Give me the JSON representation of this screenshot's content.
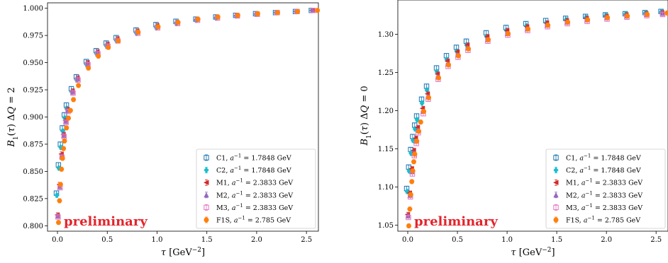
{
  "chart_data": [
    {
      "type": "scatter",
      "xlabel": "τ [GeV⁻²]",
      "ylabel": "B₁(τ) ΔQ = 2",
      "xlim": [
        -0.1,
        2.62
      ],
      "ylim": [
        0.795,
        1.005
      ],
      "xticks": [
        0.0,
        0.5,
        1.0,
        1.5,
        2.0,
        2.5
      ],
      "yticks": [
        0.8,
        0.825,
        0.85,
        0.875,
        0.9,
        0.925,
        0.95,
        0.975,
        1.0
      ],
      "xtick_labels": [
        "0.0",
        "0.5",
        "1.0",
        "1.5",
        "2.0",
        "2.5"
      ],
      "ytick_labels": [
        "0.800",
        "0.825",
        "0.850",
        "0.875",
        "0.900",
        "0.925",
        "0.950",
        "0.975",
        "1.000"
      ],
      "annotation": "preliminary",
      "legend_position": "lower-right",
      "series": [
        {
          "name": "C1, a⁻¹ = 1.7848 GeV",
          "color": "#1f77b4",
          "marker": "square",
          "x": [
            0.0,
            0.02,
            0.04,
            0.06,
            0.08,
            0.1,
            0.15,
            0.2,
            0.3,
            0.4,
            0.5,
            0.6,
            0.8,
            1.0,
            1.2,
            1.4,
            1.6,
            1.8,
            2.0,
            2.2,
            2.4,
            2.56
          ],
          "y": [
            0.83,
            0.856,
            0.875,
            0.89,
            0.902,
            0.911,
            0.926,
            0.937,
            0.951,
            0.961,
            0.968,
            0.973,
            0.98,
            0.985,
            0.988,
            0.99,
            0.992,
            0.9935,
            0.995,
            0.996,
            0.997,
            0.998
          ]
        },
        {
          "name": "C2, a⁻¹ = 1.7848 GeV",
          "color": "#17becf",
          "marker": "diamond",
          "x": [
            0.0,
            0.02,
            0.04,
            0.06,
            0.08,
            0.1,
            0.15,
            0.2,
            0.3,
            0.4,
            0.5,
            0.6,
            0.8,
            1.0,
            1.2,
            1.4,
            1.6,
            1.8,
            2.0,
            2.2,
            2.4,
            2.56
          ],
          "y": [
            0.828,
            0.853,
            0.872,
            0.887,
            0.899,
            0.908,
            0.923,
            0.934,
            0.948,
            0.958,
            0.965,
            0.97,
            0.977,
            0.982,
            0.986,
            0.989,
            0.991,
            0.993,
            0.9945,
            0.996,
            0.997,
            0.998
          ]
        },
        {
          "name": "M1, a⁻¹ = 2.3833 GeV",
          "color": "#d62728",
          "marker": "triangle-left",
          "x": [
            0.0,
            0.02,
            0.04,
            0.06,
            0.08,
            0.1,
            0.15,
            0.2,
            0.3,
            0.4,
            0.5,
            0.6,
            0.8,
            1.0,
            1.2,
            1.4,
            1.6,
            1.8,
            2.0,
            2.2,
            2.4,
            2.56
          ],
          "y": [
            0.81,
            0.838,
            0.866,
            0.884,
            0.897,
            0.907,
            0.924,
            0.936,
            0.95,
            0.96,
            0.967,
            0.972,
            0.979,
            0.984,
            0.987,
            0.99,
            0.992,
            0.9935,
            0.995,
            0.996,
            0.997,
            0.998
          ]
        },
        {
          "name": "M2, a⁻¹ = 2.3833 GeV",
          "color": "#9467bd",
          "marker": "triangle-up",
          "x": [
            0.0,
            0.02,
            0.04,
            0.06,
            0.08,
            0.1,
            0.15,
            0.2,
            0.3,
            0.4,
            0.5,
            0.6,
            0.8,
            1.0,
            1.2,
            1.4,
            1.6,
            1.8,
            2.0,
            2.2,
            2.4,
            2.56
          ],
          "y": [
            0.809,
            0.836,
            0.864,
            0.883,
            0.896,
            0.906,
            0.923,
            0.935,
            0.949,
            0.959,
            0.966,
            0.971,
            0.978,
            0.983,
            0.987,
            0.99,
            0.992,
            0.9935,
            0.995,
            0.996,
            0.997,
            0.998
          ]
        },
        {
          "name": "M3, a⁻¹ = 2.3833 GeV",
          "color": "#e377c2",
          "marker": "square-open",
          "x": [
            0.0,
            0.02,
            0.04,
            0.06,
            0.08,
            0.1,
            0.15,
            0.2,
            0.3,
            0.4,
            0.5,
            0.6,
            0.8,
            1.0,
            1.2,
            1.4,
            1.6,
            1.8,
            2.0,
            2.2,
            2.4,
            2.56
          ],
          "y": [
            0.808,
            0.835,
            0.863,
            0.882,
            0.895,
            0.905,
            0.922,
            0.934,
            0.948,
            0.958,
            0.965,
            0.97,
            0.977,
            0.982,
            0.986,
            0.989,
            0.991,
            0.993,
            0.9945,
            0.996,
            0.997,
            0.998
          ]
        },
        {
          "name": "F1S, a⁻¹ = 2.785 GeV",
          "color": "#ff7f0e",
          "marker": "circle",
          "x": [
            0.0,
            0.01,
            0.02,
            0.03,
            0.04,
            0.05,
            0.06,
            0.08,
            0.1,
            0.12,
            0.15,
            0.2,
            0.3,
            0.4,
            0.5,
            0.6,
            0.8,
            1.0,
            1.2,
            1.4,
            1.6,
            1.8,
            2.0,
            2.2,
            2.4,
            2.6
          ],
          "y": [
            0.803,
            0.823,
            0.838,
            0.852,
            0.862,
            0.871,
            0.878,
            0.89,
            0.899,
            0.906,
            0.916,
            0.929,
            0.945,
            0.956,
            0.964,
            0.97,
            0.978,
            0.983,
            0.987,
            0.99,
            0.992,
            0.9935,
            0.995,
            0.996,
            0.997,
            0.998
          ]
        }
      ]
    },
    {
      "type": "scatter",
      "xlabel": "τ [GeV⁻²]",
      "ylabel": "B₁(τ) ΔQ = 0",
      "xlim": [
        -0.1,
        2.62
      ],
      "ylim": [
        1.042,
        1.345
      ],
      "xticks": [
        0.0,
        0.5,
        1.0,
        1.5,
        2.0,
        2.5
      ],
      "yticks": [
        1.05,
        1.1,
        1.15,
        1.2,
        1.25,
        1.3
      ],
      "xtick_labels": [
        "0.0",
        "0.5",
        "1.0",
        "1.5",
        "2.0",
        "2.5"
      ],
      "ytick_labels": [
        "1.05",
        "1.10",
        "1.15",
        "1.20",
        "1.25",
        "1.30"
      ],
      "annotation": "preliminary",
      "legend_position": "lower-right",
      "series": [
        {
          "name": "C1, a⁻¹ = 1.7848 GeV",
          "color": "#1f77b4",
          "marker": "square",
          "x": [
            0.0,
            0.02,
            0.04,
            0.06,
            0.08,
            0.1,
            0.15,
            0.2,
            0.3,
            0.4,
            0.5,
            0.6,
            0.8,
            1.0,
            1.2,
            1.4,
            1.6,
            1.8,
            2.0,
            2.2,
            2.4,
            2.56
          ],
          "y": [
            1.098,
            1.126,
            1.149,
            1.166,
            1.181,
            1.193,
            1.215,
            1.232,
            1.256,
            1.272,
            1.283,
            1.291,
            1.302,
            1.309,
            1.314,
            1.318,
            1.321,
            1.3235,
            1.3255,
            1.327,
            1.3285,
            1.33
          ]
        },
        {
          "name": "C2, a⁻¹ = 1.7848 GeV",
          "color": "#17becf",
          "marker": "diamond",
          "x": [
            0.0,
            0.02,
            0.04,
            0.06,
            0.08,
            0.1,
            0.15,
            0.2,
            0.3,
            0.4,
            0.5,
            0.6,
            0.8,
            1.0,
            1.2,
            1.4,
            1.6,
            1.8,
            2.0,
            2.2,
            2.4,
            2.56
          ],
          "y": [
            1.094,
            1.121,
            1.144,
            1.161,
            1.176,
            1.188,
            1.21,
            1.227,
            1.251,
            1.267,
            1.278,
            1.286,
            1.297,
            1.305,
            1.311,
            1.315,
            1.319,
            1.322,
            1.3245,
            1.3265,
            1.328,
            1.3295
          ]
        },
        {
          "name": "M1, a⁻¹ = 2.3833 GeV",
          "color": "#d62728",
          "marker": "triangle-left",
          "x": [
            0.0,
            0.02,
            0.04,
            0.06,
            0.08,
            0.1,
            0.15,
            0.2,
            0.3,
            0.4,
            0.5,
            0.6,
            0.8,
            1.0,
            1.2,
            1.4,
            1.6,
            1.8,
            2.0,
            2.2,
            2.4,
            2.56
          ],
          "y": [
            1.064,
            1.092,
            1.124,
            1.148,
            1.164,
            1.178,
            1.203,
            1.222,
            1.248,
            1.265,
            1.277,
            1.286,
            1.297,
            1.305,
            1.31,
            1.315,
            1.318,
            1.321,
            1.3235,
            1.3255,
            1.327,
            1.3285
          ]
        },
        {
          "name": "M2, a⁻¹ = 2.3833 GeV",
          "color": "#9467bd",
          "marker": "triangle-up",
          "x": [
            0.0,
            0.02,
            0.04,
            0.06,
            0.08,
            0.1,
            0.15,
            0.2,
            0.3,
            0.4,
            0.5,
            0.6,
            0.8,
            1.0,
            1.2,
            1.4,
            1.6,
            1.8,
            2.0,
            2.2,
            2.4,
            2.56
          ],
          "y": [
            1.062,
            1.089,
            1.12,
            1.144,
            1.16,
            1.174,
            1.199,
            1.218,
            1.244,
            1.261,
            1.273,
            1.282,
            1.293,
            1.301,
            1.307,
            1.312,
            1.316,
            1.319,
            1.322,
            1.324,
            1.326,
            1.3275
          ]
        },
        {
          "name": "M3, a⁻¹ = 2.3833 GeV",
          "color": "#e377c2",
          "marker": "square-open",
          "x": [
            0.0,
            0.02,
            0.04,
            0.06,
            0.08,
            0.1,
            0.15,
            0.2,
            0.3,
            0.4,
            0.5,
            0.6,
            0.8,
            1.0,
            1.2,
            1.4,
            1.6,
            1.8,
            2.0,
            2.2,
            2.4,
            2.56
          ],
          "y": [
            1.06,
            1.087,
            1.117,
            1.141,
            1.157,
            1.171,
            1.196,
            1.215,
            1.241,
            1.258,
            1.27,
            1.279,
            1.291,
            1.299,
            1.305,
            1.31,
            1.314,
            1.317,
            1.32,
            1.3225,
            1.3245,
            1.326
          ]
        },
        {
          "name": "F1S, a⁻¹ = 2.785 GeV",
          "color": "#ff7f0e",
          "marker": "circle",
          "x": [
            0.0,
            0.01,
            0.02,
            0.03,
            0.04,
            0.05,
            0.06,
            0.08,
            0.1,
            0.12,
            0.15,
            0.2,
            0.3,
            0.4,
            0.5,
            0.6,
            0.8,
            1.0,
            1.2,
            1.4,
            1.6,
            1.8,
            2.0,
            2.2,
            2.4,
            2.6
          ],
          "y": [
            1.049,
            1.071,
            1.09,
            1.107,
            1.121,
            1.133,
            1.143,
            1.16,
            1.173,
            1.185,
            1.199,
            1.217,
            1.243,
            1.26,
            1.272,
            1.281,
            1.293,
            1.301,
            1.307,
            1.312,
            1.316,
            1.319,
            1.322,
            1.324,
            1.326,
            1.328
          ]
        }
      ]
    }
  ]
}
